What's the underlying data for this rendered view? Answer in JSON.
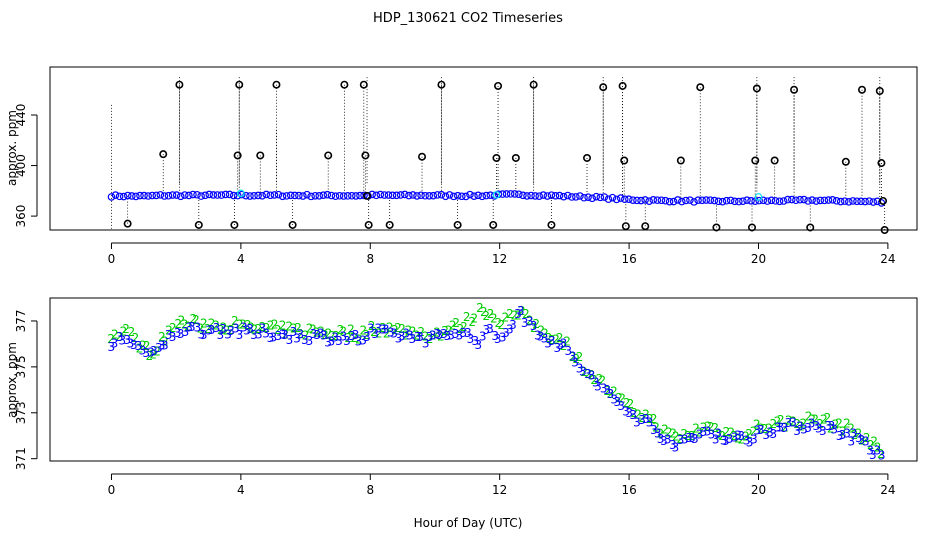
{
  "figure": {
    "title": "HDP_130621  CO2 Timeseries",
    "xlabel": "Hour of Day (UTC)"
  },
  "colors": {
    "baseline": "#0000ff",
    "highlight": "#00e5ee",
    "spike": "#000000",
    "sensor2": "#00cc00",
    "sensor3": "#0000ff"
  },
  "chart_data": [
    {
      "id": "top",
      "type": "scatter",
      "ylabel": "approx. ppm",
      "xlim": [
        -1.9,
        24.9
      ],
      "ylim": [
        349,
        478
      ],
      "xticks": [
        0,
        4,
        8,
        12,
        16,
        20,
        24
      ],
      "yticks": [
        360,
        400,
        440
      ],
      "baseline_segments": [
        [
          0,
          376
        ],
        [
          1.1,
          375.8
        ],
        [
          1.5,
          376.3
        ],
        [
          3.5,
          376.5
        ],
        [
          7.9,
          376.2
        ],
        [
          8.0,
          376.5
        ],
        [
          11.5,
          376.2
        ],
        [
          12.3,
          377
        ],
        [
          13.2,
          376.6
        ],
        [
          14.0,
          375.8
        ],
        [
          15.2,
          374.5
        ],
        [
          15.9,
          373.2
        ],
        [
          17.0,
          372.2
        ],
        [
          19.0,
          371.8
        ],
        [
          21.8,
          372.5
        ],
        [
          23.8,
          371.2
        ]
      ],
      "baseline_n": 190,
      "highlights": [
        [
          4.0,
          378
        ],
        [
          11.9,
          376.8
        ],
        [
          20.0,
          375.2
        ]
      ],
      "spikes": [
        [
          0.5,
          354
        ],
        [
          1.6,
          409
        ],
        [
          2.1,
          464
        ],
        [
          2.7,
          353
        ],
        [
          3.8,
          353
        ],
        [
          3.9,
          408
        ],
        [
          3.95,
          464
        ],
        [
          4.6,
          408
        ],
        [
          5.1,
          464
        ],
        [
          5.6,
          353
        ],
        [
          6.7,
          408
        ],
        [
          7.2,
          464
        ],
        [
          7.8,
          464
        ],
        [
          7.85,
          408
        ],
        [
          7.9,
          376
        ],
        [
          7.95,
          353
        ],
        [
          8.6,
          353
        ],
        [
          9.6,
          407
        ],
        [
          10.2,
          464
        ],
        [
          10.7,
          353
        ],
        [
          11.8,
          353
        ],
        [
          11.9,
          406
        ],
        [
          11.95,
          463
        ],
        [
          12.5,
          406
        ],
        [
          13.05,
          464
        ],
        [
          13.6,
          353
        ],
        [
          14.7,
          406
        ],
        [
          15.2,
          462
        ],
        [
          15.8,
          463
        ],
        [
          15.85,
          404
        ],
        [
          15.9,
          352
        ],
        [
          16.5,
          352
        ],
        [
          17.6,
          404
        ],
        [
          18.2,
          462
        ],
        [
          18.7,
          351
        ],
        [
          19.8,
          351
        ],
        [
          19.9,
          404
        ],
        [
          19.95,
          461
        ],
        [
          20.5,
          404
        ],
        [
          21.1,
          460
        ],
        [
          21.6,
          351
        ],
        [
          22.7,
          403
        ],
        [
          23.2,
          460
        ],
        [
          23.75,
          459
        ],
        [
          23.8,
          402
        ],
        [
          23.85,
          372
        ],
        [
          23.9,
          349
        ]
      ],
      "drop_lines": [
        [
          0,
          448,
          350
        ],
        [
          2.1,
          470,
          385
        ],
        [
          3.95,
          470,
          385
        ],
        [
          5.1,
          428,
          385
        ],
        [
          7.9,
          470,
          385
        ],
        [
          10.2,
          470,
          385
        ],
        [
          13.05,
          470,
          385
        ],
        [
          15.2,
          470,
          385
        ],
        [
          15.8,
          470,
          385
        ],
        [
          19.95,
          470,
          385
        ],
        [
          21.1,
          470,
          385
        ],
        [
          23.75,
          470,
          385
        ]
      ]
    },
    {
      "id": "bottom",
      "type": "scatter",
      "ylabel": "approx. ppm",
      "xlim": [
        -1.9,
        24.9
      ],
      "ylim": [
        370.9,
        378.0
      ],
      "xticks": [
        0,
        4,
        8,
        12,
        16,
        20,
        24
      ],
      "yticks": [
        371,
        373,
        375,
        377
      ],
      "marker_labels": [
        "2",
        "3"
      ],
      "series": [
        {
          "name": "2",
          "segments": [
            [
              0,
              376.2
            ],
            [
              0.4,
              376.6
            ],
            [
              0.8,
              376.1
            ],
            [
              1.2,
              375.6
            ],
            [
              1.5,
              376.0
            ],
            [
              2.0,
              376.9
            ],
            [
              3.5,
              376.8
            ],
            [
              3.9,
              376.8
            ],
            [
              4.0,
              376.7
            ],
            [
              7.8,
              376.4
            ],
            [
              8.0,
              376.7
            ],
            [
              10.0,
              376.4
            ],
            [
              10.8,
              376.8
            ],
            [
              11.5,
              377.5
            ],
            [
              12.0,
              377.0
            ],
            [
              12.6,
              377.3
            ],
            [
              13.4,
              376.5
            ],
            [
              14.0,
              376.1
            ],
            [
              14.6,
              375.0
            ],
            [
              15.5,
              373.8
            ],
            [
              16.0,
              373.2
            ],
            [
              16.6,
              372.8
            ],
            [
              17.2,
              372.0
            ],
            [
              17.6,
              371.9
            ],
            [
              18.4,
              372.4
            ],
            [
              19.0,
              372.1
            ],
            [
              19.7,
              372.0
            ],
            [
              20.0,
              372.4
            ],
            [
              21.8,
              372.7
            ],
            [
              22.6,
              372.4
            ],
            [
              23.2,
              372.0
            ],
            [
              23.8,
              371.3
            ]
          ],
          "n": 200
        },
        {
          "name": "3",
          "segments": [
            [
              0,
              375.9
            ],
            [
              0.4,
              376.3
            ],
            [
              0.8,
              375.9
            ],
            [
              1.2,
              375.4
            ],
            [
              1.5,
              375.8
            ],
            [
              2.0,
              376.6
            ],
            [
              3.5,
              376.6
            ],
            [
              3.9,
              376.6
            ],
            [
              4.0,
              376.5
            ],
            [
              7.8,
              376.2
            ],
            [
              8.0,
              376.5
            ],
            [
              10.0,
              376.2
            ],
            [
              10.8,
              376.6
            ],
            [
              11.3,
              376.0
            ],
            [
              11.5,
              376.6
            ],
            [
              12.0,
              376.2
            ],
            [
              12.6,
              377.3
            ],
            [
              13.4,
              376.3
            ],
            [
              14.0,
              375.8
            ],
            [
              14.6,
              374.8
            ],
            [
              15.5,
              373.6
            ],
            [
              16.0,
              373.0
            ],
            [
              16.6,
              372.5
            ],
            [
              17.2,
              371.8
            ],
            [
              17.6,
              371.6
            ],
            [
              18.4,
              372.2
            ],
            [
              19.0,
              371.9
            ],
            [
              19.7,
              371.8
            ],
            [
              20.0,
              372.2
            ],
            [
              21.8,
              372.5
            ],
            [
              22.6,
              372.1
            ],
            [
              23.2,
              371.8
            ],
            [
              23.8,
              371.0
            ]
          ],
          "n": 200
        }
      ]
    }
  ]
}
